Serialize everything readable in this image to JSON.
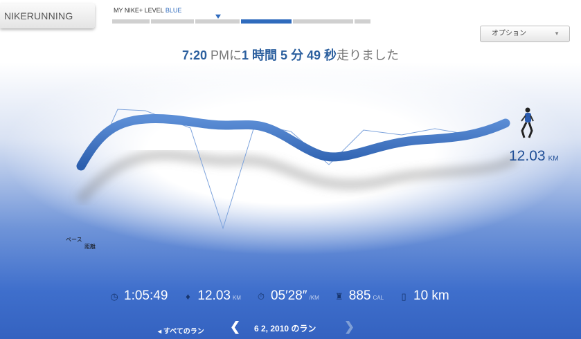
{
  "brand": {
    "part1": "NIKE",
    "part2": "RUNNING"
  },
  "level": {
    "label": "MY NIKE+ LEVEL",
    "value": "BLUE",
    "accent": "#2f6bbd"
  },
  "options": {
    "label": "オプション"
  },
  "headline": {
    "time": "7:20",
    "pm": " PMに",
    "hours": "1 時間 5 分 49 秒",
    "suffix": "走りました"
  },
  "run": {
    "distance": "12.03",
    "distance_unit": "KM"
  },
  "legend": {
    "pace": "ペース",
    "distance": "距離"
  },
  "stats": [
    {
      "icon": "clock-icon",
      "value": "1:05:49",
      "unit": ""
    },
    {
      "icon": "location-pin-icon",
      "value": "12.03",
      "unit": "KM"
    },
    {
      "icon": "stopwatch-icon",
      "value": "05′28″",
      "unit": "/KM"
    },
    {
      "icon": "trophy-icon",
      "value": "885",
      "unit": "CAL"
    },
    {
      "icon": "ipod-icon",
      "value": "10 km",
      "unit": ""
    }
  ],
  "nav": {
    "all_runs": "すべてのラン",
    "date": "6 2, 2010 のラン"
  }
}
